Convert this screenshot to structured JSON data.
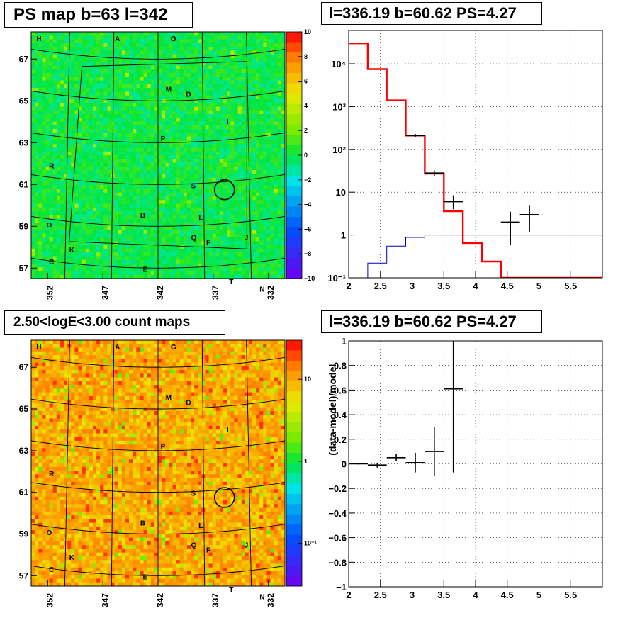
{
  "panels": {
    "ps_map_title": "PS map b=63 l=342",
    "spectrum_title": "l=336.19 b=60.62 PS=4.27",
    "count_map_title": "2.50<logE<3.00 count maps",
    "residual_title": "l=336.19 b=60.62 PS=4.27"
  },
  "colors": {
    "model_line": "#ff0000",
    "background_line": "#0000cc",
    "data_points": "#000000",
    "grid_lines": "#000000",
    "marker_circle": "#000000"
  },
  "sky_map": {
    "x_ticks": [
      "352",
      "347",
      "342",
      "337",
      "332"
    ],
    "y_ticks": [
      "67",
      "65",
      "63",
      "61",
      "59",
      "57"
    ],
    "source_labels": [
      "H",
      "A",
      "G",
      "M",
      "D",
      "I",
      "P",
      "R",
      "S",
      "B",
      "L",
      "O",
      "Q",
      "F",
      "J",
      "K",
      "C",
      "E",
      "T",
      "N"
    ],
    "ps_colorbar_ticks": [
      "10",
      "8",
      "6",
      "4",
      "2",
      "0",
      "−2",
      "−4",
      "−6",
      "−8",
      "−10"
    ],
    "count_colorbar_ticks": [
      "10",
      "1",
      "10⁻¹"
    ]
  },
  "chart_data": [
    {
      "type": "heatmap",
      "title": "PS map b=63 l=342",
      "xlim": [
        353.5,
        330.5
      ],
      "ylim": [
        56.5,
        68.3
      ],
      "zlim": [
        -10,
        10
      ],
      "typical_value": 0,
      "x_tick_values": [
        352,
        347,
        342,
        337,
        332
      ],
      "y_tick_values": [
        67,
        65,
        63,
        61,
        59,
        57
      ],
      "marker": {
        "l": 336.19,
        "b": 60.62
      }
    },
    {
      "type": "line",
      "title": "l=336.19 b=60.62 PS=4.27",
      "xlim": [
        2,
        6
      ],
      "ylim": [
        0.1,
        60000
      ],
      "y_log": true,
      "grid": true,
      "x_ticks": [
        "2",
        "2.5",
        "3",
        "3.5",
        "4",
        "4.5",
        "5",
        "5.5"
      ],
      "y_ticks": [
        "10⁻¹",
        "1",
        "10",
        "10²",
        "10³",
        "10⁴"
      ],
      "y_tick_exponents": [
        -1,
        0,
        1,
        2,
        3,
        4
      ],
      "bin_edges": [
        2.0,
        2.3,
        2.6,
        2.9,
        3.2,
        3.5,
        3.8,
        4.1,
        4.4,
        4.7,
        5.0,
        5.3,
        5.6,
        5.9,
        6.0
      ],
      "series": [
        {
          "values": [
            30000,
            7500,
            1400,
            210,
            27,
            3.6,
            0.65,
            0.24,
            0.1,
            0.1,
            0.1,
            0.1,
            0.1,
            0.1
          ]
        },
        {
          "values": [
            0.1,
            0.22,
            0.55,
            0.88,
            1.0,
            1.0,
            1.0,
            1.0,
            1.0,
            1.0,
            1.0,
            1.0,
            1.0,
            1.0
          ]
        },
        {
          "x": [
            3.05,
            3.35,
            3.65,
            4.55,
            4.85
          ],
          "y": [
            210,
            28,
            6,
            2,
            3
          ],
          "xerr": [
            0.15,
            0.15,
            0.15,
            0.15,
            0.15
          ],
          "ylo": [
            190,
            24,
            4,
            0.6,
            1.2
          ],
          "yhi": [
            230,
            32,
            8.5,
            3.5,
            5
          ]
        }
      ]
    },
    {
      "type": "heatmap",
      "title": "2.50<logE<3.00 count maps",
      "xlim": [
        353.5,
        330.5
      ],
      "ylim": [
        56.5,
        68.3
      ],
      "z_log": true,
      "zlim": [
        0.03,
        30
      ],
      "typical_value": 10,
      "x_tick_values": [
        352,
        347,
        342,
        337,
        332
      ],
      "y_tick_values": [
        67,
        65,
        63,
        61,
        59,
        57
      ],
      "marker": {
        "l": 336.19,
        "b": 60.62
      }
    },
    {
      "type": "scatter",
      "title": "l=336.19 b=60.62 PS=4.27",
      "ylabel": "(data-model)/model",
      "xlim": [
        2,
        6
      ],
      "ylim": [
        -1,
        1
      ],
      "grid": true,
      "x_ticks": [
        "2",
        "2.5",
        "3",
        "3.5",
        "4",
        "4.5",
        "5",
        "5.5"
      ],
      "y_ticks": [
        "−1",
        "−0.8",
        "−0.6",
        "−0.4",
        "−0.2",
        "0",
        "0.2",
        "0.4",
        "0.6",
        "0.8",
        "1"
      ],
      "series": [
        {
          "x": [
            2.15,
            2.45,
            2.75,
            3.05,
            3.35,
            3.65
          ],
          "y": [
            0.0,
            -0.01,
            0.05,
            0.01,
            0.1,
            0.61
          ],
          "xerr": [
            0.15,
            0.15,
            0.15,
            0.15,
            0.15,
            0.15
          ],
          "yerr": [
            0.005,
            0.02,
            0.03,
            0.08,
            0.2,
            0.68
          ]
        }
      ]
    }
  ]
}
